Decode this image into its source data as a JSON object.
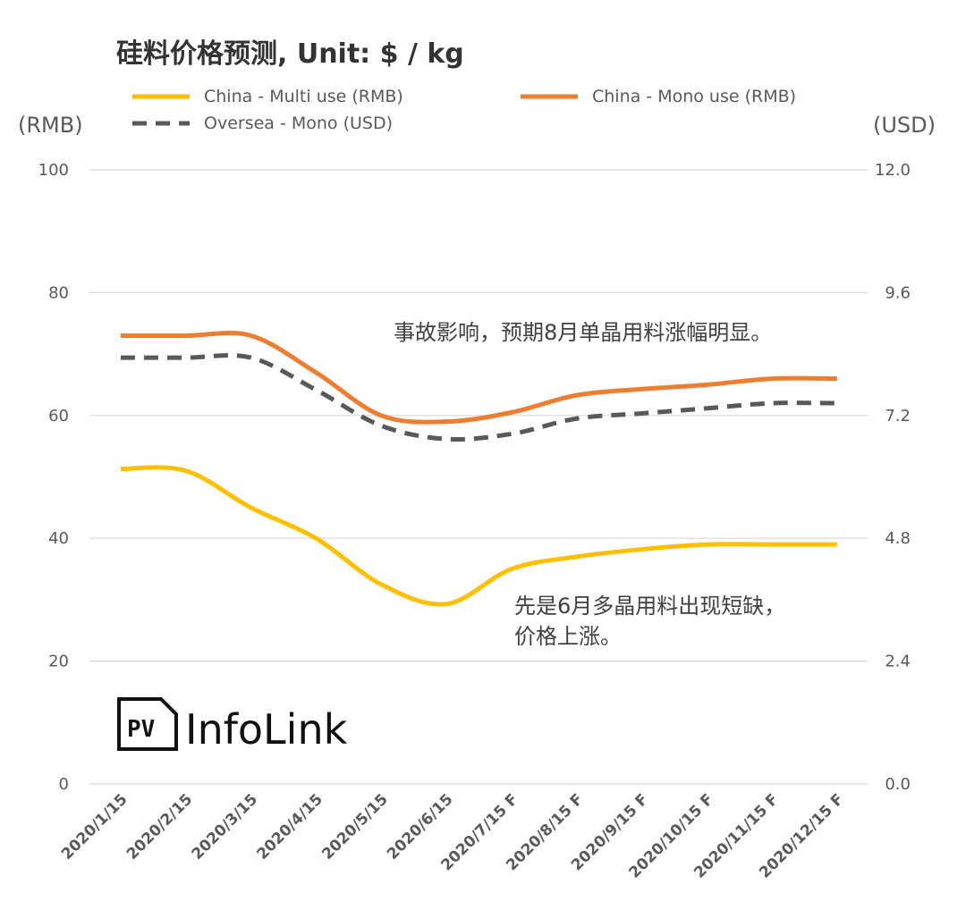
{
  "chart_data": {
    "type": "line",
    "title": "硅料价格预测, Unit: $ / kg",
    "categories": [
      "2020/1/15",
      "2020/2/15",
      "2020/3/15",
      "2020/4/15",
      "2020/5/15",
      "2020/6/15",
      "2020/7/15 F",
      "2020/8/15 F",
      "2020/9/15 F",
      "2020/10/15 F",
      "2020/11/15 F",
      "2020/12/15 F"
    ],
    "y_left": {
      "label": "(RMB)",
      "ylim": [
        0,
        100
      ],
      "ticks": [
        "0",
        "20",
        "40",
        "60",
        "80",
        "100"
      ]
    },
    "y_right": {
      "label": "(USD)",
      "ylim": [
        0,
        12
      ],
      "ticks": [
        "0.0",
        "2.4",
        "4.8",
        "7.2",
        "9.6",
        "12.0"
      ]
    },
    "grid": true,
    "legend_position": "top",
    "series": [
      {
        "name": "China - Multi use (RMB)",
        "axis": "left",
        "color": "#FFC000",
        "dash": "solid",
        "values": [
          51.3,
          51,
          45,
          40,
          32.5,
          29.3,
          35,
          37,
          38.2,
          39,
          39,
          39
        ]
      },
      {
        "name": "China - Mono use (RMB)",
        "axis": "left",
        "color": "#ED7D31",
        "dash": "solid",
        "values": [
          73,
          73,
          73,
          67,
          60,
          59,
          60.5,
          63.3,
          64.3,
          65,
          66,
          66
        ]
      },
      {
        "name": "Oversea - Mono (USD)",
        "axis": "right",
        "color": "#595959",
        "dash": "dashed",
        "values": [
          8.33,
          8.33,
          8.33,
          7.7,
          7.0,
          6.74,
          6.84,
          7.14,
          7.24,
          7.34,
          7.44,
          7.44
        ]
      }
    ],
    "annotations": [
      "事故影响，预期8月单晶用料涨幅明显。",
      "先是6月多晶用料出现短缺，",
      "价格上涨。"
    ]
  },
  "logo": {
    "badge": "PV",
    "text": "InfoLink"
  }
}
